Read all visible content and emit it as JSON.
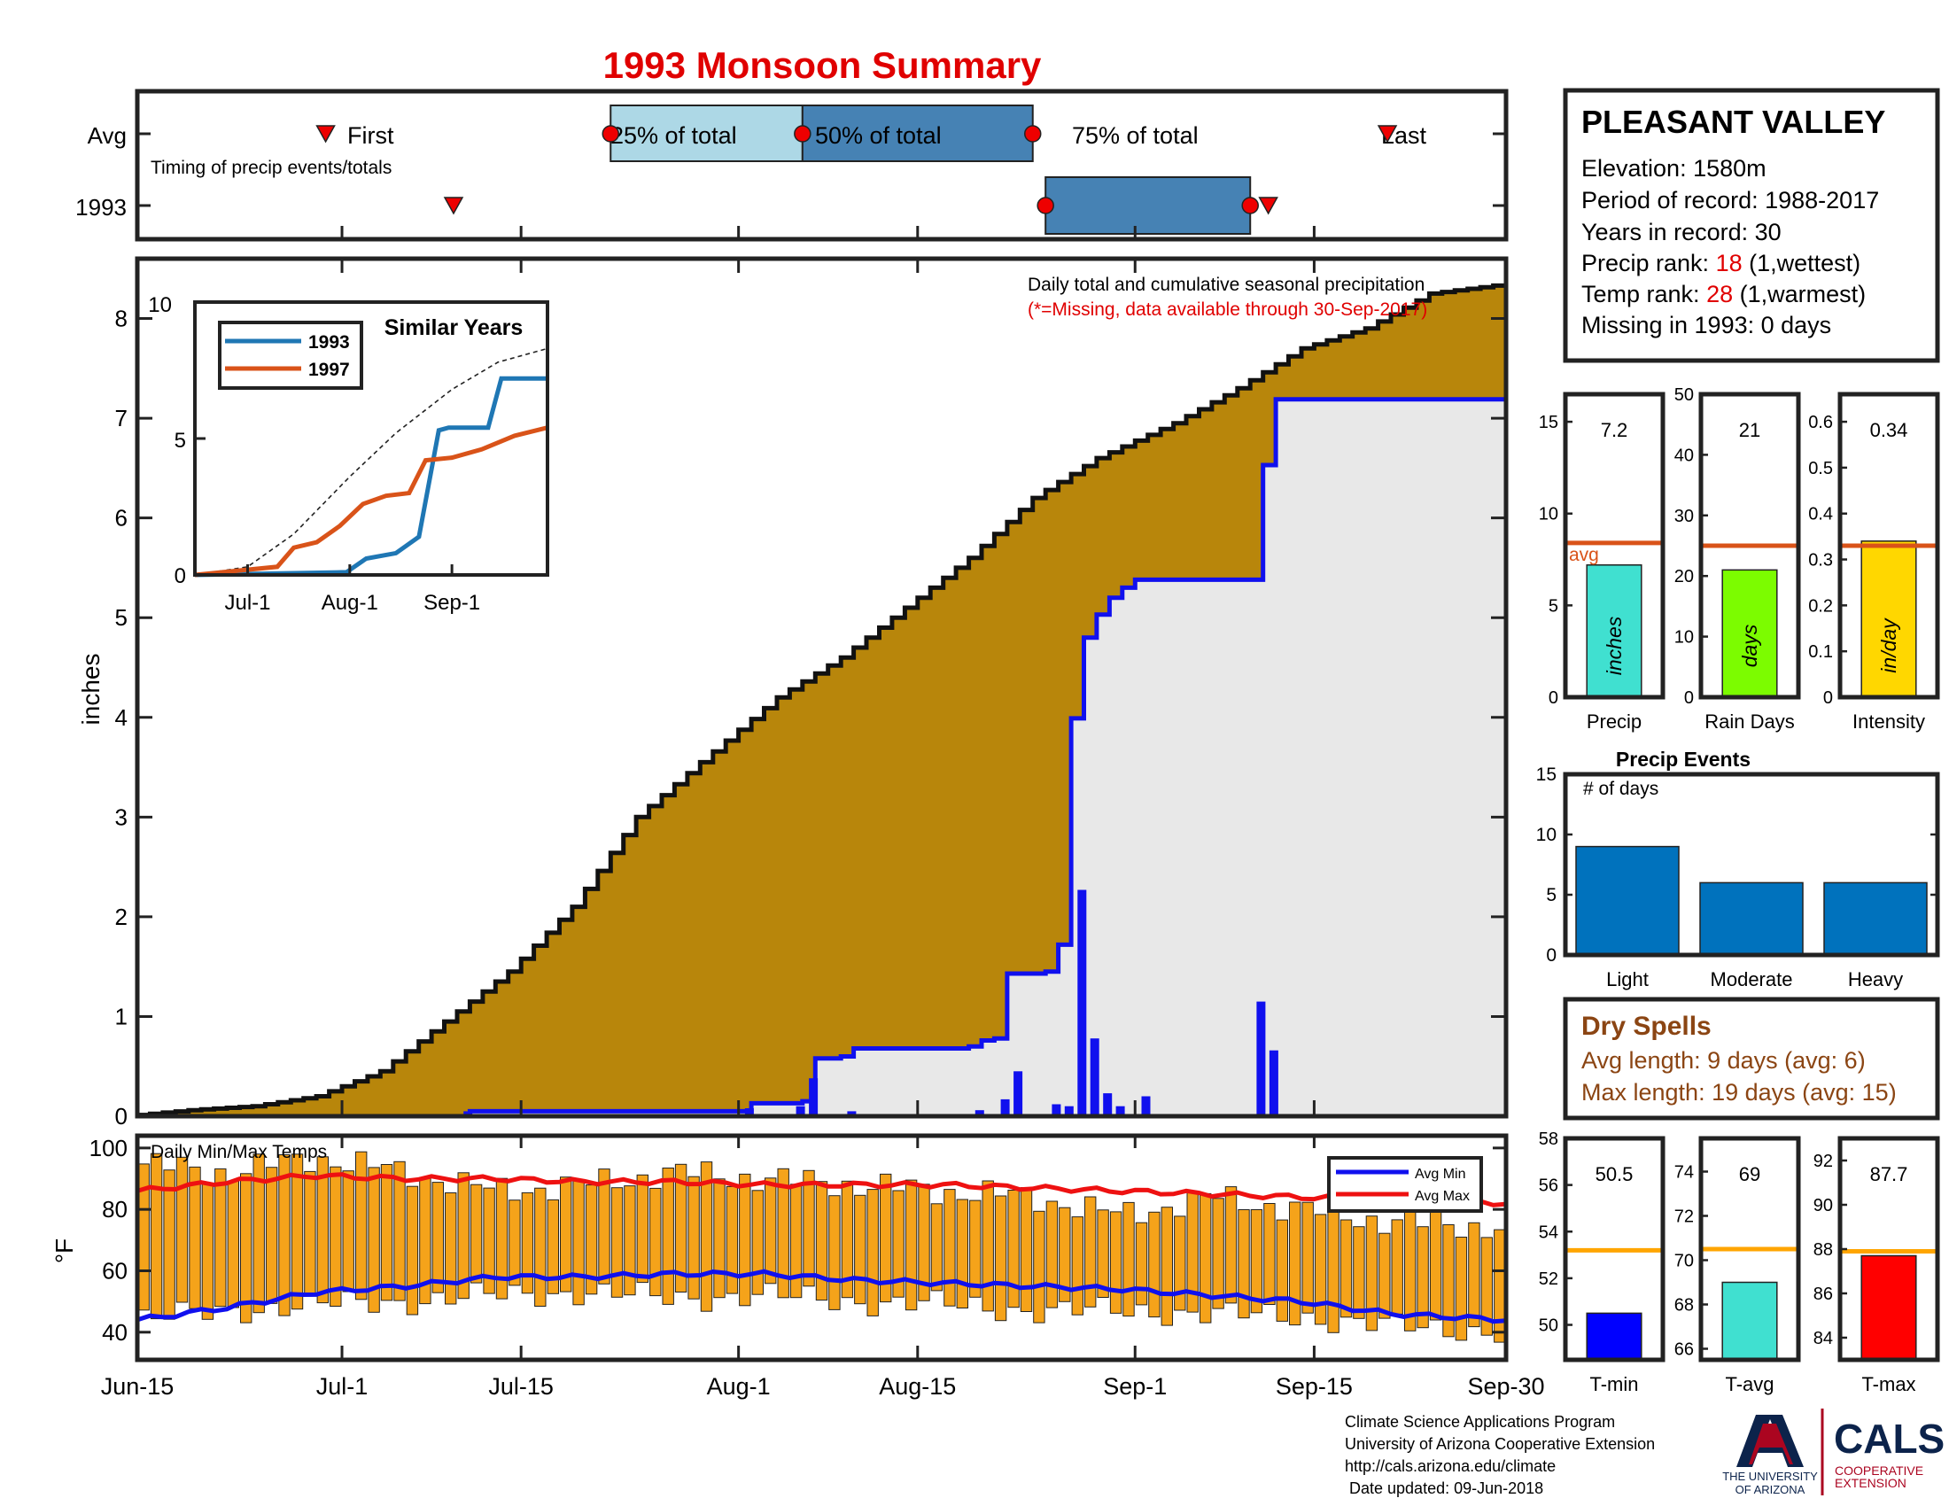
{
  "title": "1993 Monsoon Summary",
  "colors": {
    "title": "#e00000",
    "cumulative_avg_fill": "#b8860b",
    "cumulative_1993_fill": "#e8e8e8",
    "season_line": "#1010ee",
    "daily_bars": "#1010ee",
    "temp_bars": "#f5a31a",
    "avg_max_line": "#ee1111",
    "avg_min_line": "#1010ee",
    "q25_box": "#add8e6",
    "q50_box": "#4682b4",
    "marker": "#ee0000",
    "sim_1993": "#1f77b4",
    "sim_1997": "#d95319",
    "avg_line_orange": "#d95319",
    "avg_line_gold": "#ffa500",
    "precip_bar": "#40e0d0",
    "raindays_bar": "#7cfc00",
    "intensity_bar": "#ffd700",
    "events_bar": "#0072bd",
    "tmin_bar": "#0000ff",
    "tavg_bar": "#40e0d0",
    "tmax_bar": "#ff0000",
    "dry_spells_text": "#8b4513"
  },
  "timing": {
    "row_labels": [
      "Avg",
      "1993"
    ],
    "note": "Timing of precip events/totals",
    "first_label": "First",
    "last_label": "Last",
    "q25_label": "25% of total",
    "q50_label": "50% of total",
    "q75_label": "75% of total",
    "avg_first": "2018-06-30",
    "avg_q25": "2018-07-22",
    "avg_q50": "2018-08-06",
    "avg_q75": "2018-08-24",
    "avg_last": "2018-09-21",
    "y1993_first": "2018-07-10",
    "y1993_q25": "2018-08-25",
    "y1993_q75": "2018-09-10",
    "y1993_last": "2018-09-11"
  },
  "main": {
    "annotation_line1": "Daily total and cumulative seasonal precipitation",
    "annotation_line2": "(*=Missing, data available through 30-Sep-2017)",
    "ylabel": "inches"
  },
  "x_axis": {
    "ticks": [
      "Jun-15",
      "Jul-1",
      "Jul-15",
      "Aug-1",
      "Aug-15",
      "Sep-1",
      "Sep-15",
      "Sep-30"
    ],
    "tick_dates": [
      "2018-06-15",
      "2018-07-01",
      "2018-07-15",
      "2018-08-01",
      "2018-08-15",
      "2018-09-01",
      "2018-09-15",
      "2018-09-30"
    ]
  },
  "inset": {
    "title": "Similar Years",
    "legend": [
      "1993",
      "1997"
    ],
    "x_ticks": [
      "Jul-1",
      "Aug-1",
      "Sep-1"
    ],
    "y_ticks": [
      "0",
      "5",
      "10"
    ]
  },
  "station": {
    "name": "PLEASANT VALLEY",
    "elevation": "Elevation: 1580m",
    "period": "Period of record: 1988-2017",
    "years": "Years in record: 30",
    "precip_rank_label": "Precip rank: ",
    "precip_rank_value": "18",
    "precip_rank_suffix": " (1,wettest)",
    "temp_rank_label": "Temp rank: ",
    "temp_rank_value": "28",
    "temp_rank_suffix": " (1,warmest)",
    "missing": "Missing in 1993: 0 days"
  },
  "mini_precip": [
    {
      "label": "Precip",
      "unit": "inches",
      "value_text": "7.2",
      "avg_label": "avg"
    },
    {
      "label": "Rain Days",
      "unit": "days",
      "value_text": "21"
    },
    {
      "label": "Intensity",
      "unit": "in/day",
      "value_text": "0.34"
    }
  ],
  "events": {
    "title": "Precip Events",
    "ylabel": "# of days"
  },
  "dry_spells": {
    "title": "Dry Spells",
    "avg_line": "Avg length: 9 days (avg: 6)",
    "max_line": "Max length: 19 days (avg: 15)"
  },
  "temps": {
    "label": "Daily Min/Max Temps",
    "ylabel": "°F",
    "legend": [
      "Avg Min",
      "Avg Max"
    ]
  },
  "mini_temps": [
    {
      "label": "T-min",
      "value_text": "50.5"
    },
    {
      "label": "T-avg",
      "value_text": "69"
    },
    {
      "label": "T-max",
      "value_text": "87.7"
    }
  ],
  "footer": {
    "line1": "Climate Science Applications Program",
    "line2": "University of Arizona Cooperative Extension",
    "line3": "http://cals.arizona.edu/climate",
    "line4": " Date updated: 09-Jun-2018",
    "ua_line1": "THE UNIVERSITY",
    "ua_line2": "OF ARIZONA",
    "cals": "CALS",
    "cals_sub1": "COOPERATIVE",
    "cals_sub2": "EXTENSION"
  },
  "chart_data": [
    {
      "type": "area",
      "title": "Daily total and cumulative seasonal precipitation",
      "ylabel": "inches",
      "xlim": [
        "2018-06-15",
        "2018-09-30"
      ],
      "ylim": [
        0,
        8.6
      ],
      "y_ticks": [
        0,
        1,
        2,
        3,
        4,
        5,
        6,
        7,
        8
      ],
      "series": [
        {
          "name": "",
          "kind": "cumulative-average",
          "x": [
            "2018-06-15",
            "2018-06-20",
            "2018-06-25",
            "2018-06-30",
            "2018-07-05",
            "2018-07-10",
            "2018-07-15",
            "2018-07-20",
            "2018-07-25",
            "2018-07-30",
            "2018-08-05",
            "2018-08-10",
            "2018-08-15",
            "2018-08-20",
            "2018-08-25",
            "2018-08-30",
            "2018-09-05",
            "2018-09-10",
            "2018-09-15",
            "2018-09-20",
            "2018-09-25",
            "2018-09-30"
          ],
          "y": [
            0.0,
            0.06,
            0.1,
            0.2,
            0.45,
            0.95,
            1.45,
            2.1,
            3.0,
            3.55,
            4.2,
            4.6,
            5.1,
            5.6,
            6.2,
            6.6,
            6.95,
            7.3,
            7.7,
            7.9,
            8.25,
            8.33
          ]
        },
        {
          "name": "",
          "kind": "cumulative-1993",
          "x": [
            "2018-06-15",
            "2018-07-10",
            "2018-07-11",
            "2018-08-01",
            "2018-08-02",
            "2018-08-06",
            "2018-08-07",
            "2018-08-09",
            "2018-08-10",
            "2018-08-19",
            "2018-08-20",
            "2018-08-21",
            "2018-08-22",
            "2018-08-25",
            "2018-08-26",
            "2018-08-27",
            "2018-08-28",
            "2018-08-29",
            "2018-08-30",
            "2018-08-31",
            "2018-09-01",
            "2018-09-10",
            "2018-09-11",
            "2018-09-12",
            "2018-09-30"
          ],
          "y": [
            0.0,
            0.0,
            0.05,
            0.05,
            0.13,
            0.15,
            0.58,
            0.6,
            0.68,
            0.7,
            0.76,
            0.78,
            1.43,
            1.45,
            1.72,
            3.99,
            4.8,
            5.03,
            5.2,
            5.3,
            5.38,
            5.38,
            6.53,
            7.19,
            7.19
          ]
        },
        {
          "name": "",
          "kind": "daily-1993",
          "x": [
            "2018-07-11",
            "2018-08-02",
            "2018-08-06",
            "2018-08-07",
            "2018-08-10",
            "2018-08-20",
            "2018-08-22",
            "2018-08-23",
            "2018-08-26",
            "2018-08-27",
            "2018-08-28",
            "2018-08-29",
            "2018-08-30",
            "2018-08-31",
            "2018-09-02",
            "2018-09-11",
            "2018-09-12"
          ],
          "y": [
            0.05,
            0.08,
            0.1,
            0.38,
            0.05,
            0.06,
            0.17,
            0.45,
            0.12,
            0.1,
            2.27,
            0.78,
            0.23,
            0.1,
            0.2,
            1.15,
            0.66
          ]
        }
      ]
    },
    {
      "type": "line",
      "title": "Similar Years",
      "xlim": [
        "2018-06-15",
        "2018-09-30"
      ],
      "ylim": [
        0,
        10
      ],
      "series": [
        {
          "name": "",
          "kind": "average-dashed",
          "x": [
            "2018-06-15",
            "2018-07-01",
            "2018-07-15",
            "2018-08-01",
            "2018-08-15",
            "2018-09-01",
            "2018-09-15",
            "2018-09-30"
          ],
          "y": [
            0,
            0.3,
            1.5,
            3.6,
            5.2,
            6.8,
            7.8,
            8.3
          ]
        },
        {
          "name": "1993",
          "x": [
            "2018-06-15",
            "2018-07-31",
            "2018-08-06",
            "2018-08-15",
            "2018-08-22",
            "2018-08-28",
            "2018-08-31",
            "2018-09-12",
            "2018-09-16",
            "2018-09-30"
          ],
          "y": [
            0,
            0.1,
            0.6,
            0.8,
            1.4,
            5.3,
            5.4,
            5.4,
            7.2,
            7.2
          ]
        },
        {
          "name": "1997",
          "x": [
            "2018-06-15",
            "2018-07-10",
            "2018-07-15",
            "2018-07-22",
            "2018-07-29",
            "2018-08-05",
            "2018-08-12",
            "2018-08-19",
            "2018-08-24",
            "2018-09-01",
            "2018-09-10",
            "2018-09-20",
            "2018-09-30"
          ],
          "y": [
            0,
            0.3,
            1.0,
            1.2,
            1.8,
            2.6,
            2.9,
            3.0,
            4.2,
            4.3,
            4.6,
            5.1,
            5.4
          ]
        }
      ]
    },
    {
      "type": "bar",
      "title": "",
      "categories": [
        "Precip"
      ],
      "values": [
        7.2
      ],
      "average": 8.4,
      "ylim": [
        0,
        16.5
      ],
      "y_ticks": [
        0,
        5,
        10,
        15
      ]
    },
    {
      "type": "bar",
      "title": "",
      "categories": [
        "Rain Days"
      ],
      "values": [
        21
      ],
      "average": 25,
      "ylim": [
        0,
        50
      ],
      "y_ticks": [
        0,
        10,
        20,
        30,
        40,
        50
      ]
    },
    {
      "type": "bar",
      "title": "",
      "categories": [
        "Intensity"
      ],
      "values": [
        0.34
      ],
      "average": 0.33,
      "ylim": [
        0,
        0.66
      ],
      "y_ticks": [
        0,
        0.1,
        0.2,
        0.3,
        0.4,
        0.5,
        0.6
      ]
    },
    {
      "type": "bar",
      "title": "Precip Events",
      "ylabel": "# of days",
      "categories": [
        "Light",
        "Moderate",
        "Heavy"
      ],
      "values": [
        9,
        6,
        6
      ],
      "ylim": [
        0,
        15
      ],
      "y_ticks": [
        0,
        5,
        10,
        15
      ]
    },
    {
      "type": "bar",
      "title": "Daily Min/Max Temps",
      "ylabel": "°F",
      "xlim": [
        "2018-06-15",
        "2018-09-30"
      ],
      "ylim": [
        31,
        104
      ],
      "y_ticks": [
        40,
        60,
        80,
        100
      ],
      "anchors_x": [
        "2018-06-15",
        "2018-06-22",
        "2018-06-29",
        "2018-07-06",
        "2018-07-13",
        "2018-07-20",
        "2018-07-27",
        "2018-08-03",
        "2018-08-10",
        "2018-08-17",
        "2018-08-24",
        "2018-08-31",
        "2018-09-07",
        "2018-09-14",
        "2018-09-21",
        "2018-09-30"
      ],
      "daily_max_anchors": [
        95,
        92,
        97,
        92,
        86,
        88,
        92,
        90,
        88,
        86,
        84,
        78,
        84,
        80,
        76,
        74
      ],
      "daily_min_anchors": [
        44,
        47,
        49,
        50,
        52,
        53,
        51,
        52,
        50,
        49,
        47,
        47,
        46,
        45,
        42,
        40
      ],
      "series": [
        {
          "name": "Avg Max",
          "x": [
            "2018-06-15",
            "2018-06-22",
            "2018-06-29",
            "2018-07-06",
            "2018-07-13",
            "2018-07-20",
            "2018-07-27",
            "2018-08-03",
            "2018-08-10",
            "2018-08-17",
            "2018-08-24",
            "2018-08-31",
            "2018-09-07",
            "2018-09-14",
            "2018-09-21",
            "2018-09-30"
          ],
          "y": [
            86,
            89,
            91,
            90,
            90,
            89,
            89,
            88,
            88,
            88,
            87,
            86,
            85,
            84,
            83,
            82
          ]
        },
        {
          "name": "Avg Min",
          "x": [
            "2018-06-15",
            "2018-06-22",
            "2018-06-29",
            "2018-07-06",
            "2018-07-13",
            "2018-07-20",
            "2018-07-27",
            "2018-08-03",
            "2018-08-10",
            "2018-08-17",
            "2018-08-24",
            "2018-08-31",
            "2018-09-07",
            "2018-09-14",
            "2018-09-21",
            "2018-09-30"
          ],
          "y": [
            44,
            48,
            53,
            55,
            58,
            58,
            59,
            59,
            57,
            56,
            55,
            54,
            52,
            50,
            46,
            44
          ]
        }
      ]
    },
    {
      "type": "bar",
      "title": "",
      "categories": [
        "T-min"
      ],
      "values": [
        50.5
      ],
      "average": 53.2,
      "ylim": [
        48.5,
        58
      ],
      "y_ticks": [
        50,
        52,
        54,
        56,
        58
      ]
    },
    {
      "type": "bar",
      "title": "",
      "categories": [
        "T-avg"
      ],
      "values": [
        69
      ],
      "average": 70.5,
      "ylim": [
        65.5,
        75.5
      ],
      "y_ticks": [
        66,
        68,
        70,
        72,
        74
      ]
    },
    {
      "type": "bar",
      "title": "",
      "categories": [
        "T-max"
      ],
      "values": [
        87.7
      ],
      "average": 87.9,
      "ylim": [
        83,
        93
      ],
      "y_ticks": [
        84,
        86,
        88,
        90,
        92
      ]
    }
  ]
}
